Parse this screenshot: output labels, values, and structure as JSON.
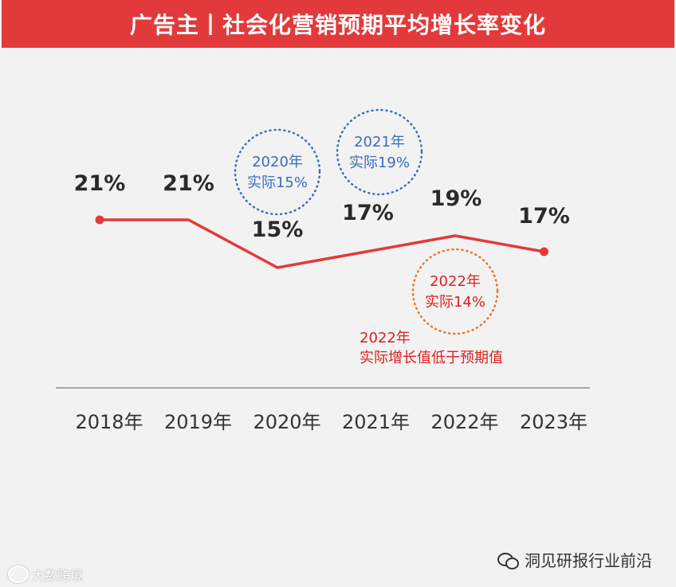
{
  "title": "广告主丨社会化营销预期平均增长率变化",
  "colors": {
    "title_bg": "#e23a3a",
    "line": "#e23a3a",
    "blue": "#3a6cc0",
    "orange": "#f07020",
    "note_red": "#e02020"
  },
  "chart_data": {
    "type": "line",
    "categories": [
      "2018年",
      "2019年",
      "2020年",
      "2021年",
      "2022年",
      "2023年"
    ],
    "series": [
      {
        "name": "预期平均增长率",
        "values": [
          21,
          21,
          15,
          17,
          19,
          17
        ]
      }
    ],
    "value_labels": [
      "21%",
      "21%",
      "15%",
      "17%",
      "19%",
      "17%"
    ],
    "annotations": [
      {
        "year_label": "2020年",
        "actual_label": "实际15%",
        "style": "blue-dotted-circle"
      },
      {
        "year_label": "2021年",
        "actual_label": "实际19%",
        "style": "blue-dotted-circle"
      },
      {
        "year_label": "2022年",
        "actual_label": "实际14%",
        "style": "orange-dotted-circle"
      }
    ],
    "note": {
      "line1": "2022年",
      "line2": "实际增长值低于预期值"
    },
    "xlabel": "",
    "ylabel": "",
    "ylim": [
      10,
      24
    ],
    "grid": false,
    "legend": "none"
  },
  "footer": {
    "brand_left": "大数跨境",
    "brand_right": "洞见研报行业前沿"
  }
}
